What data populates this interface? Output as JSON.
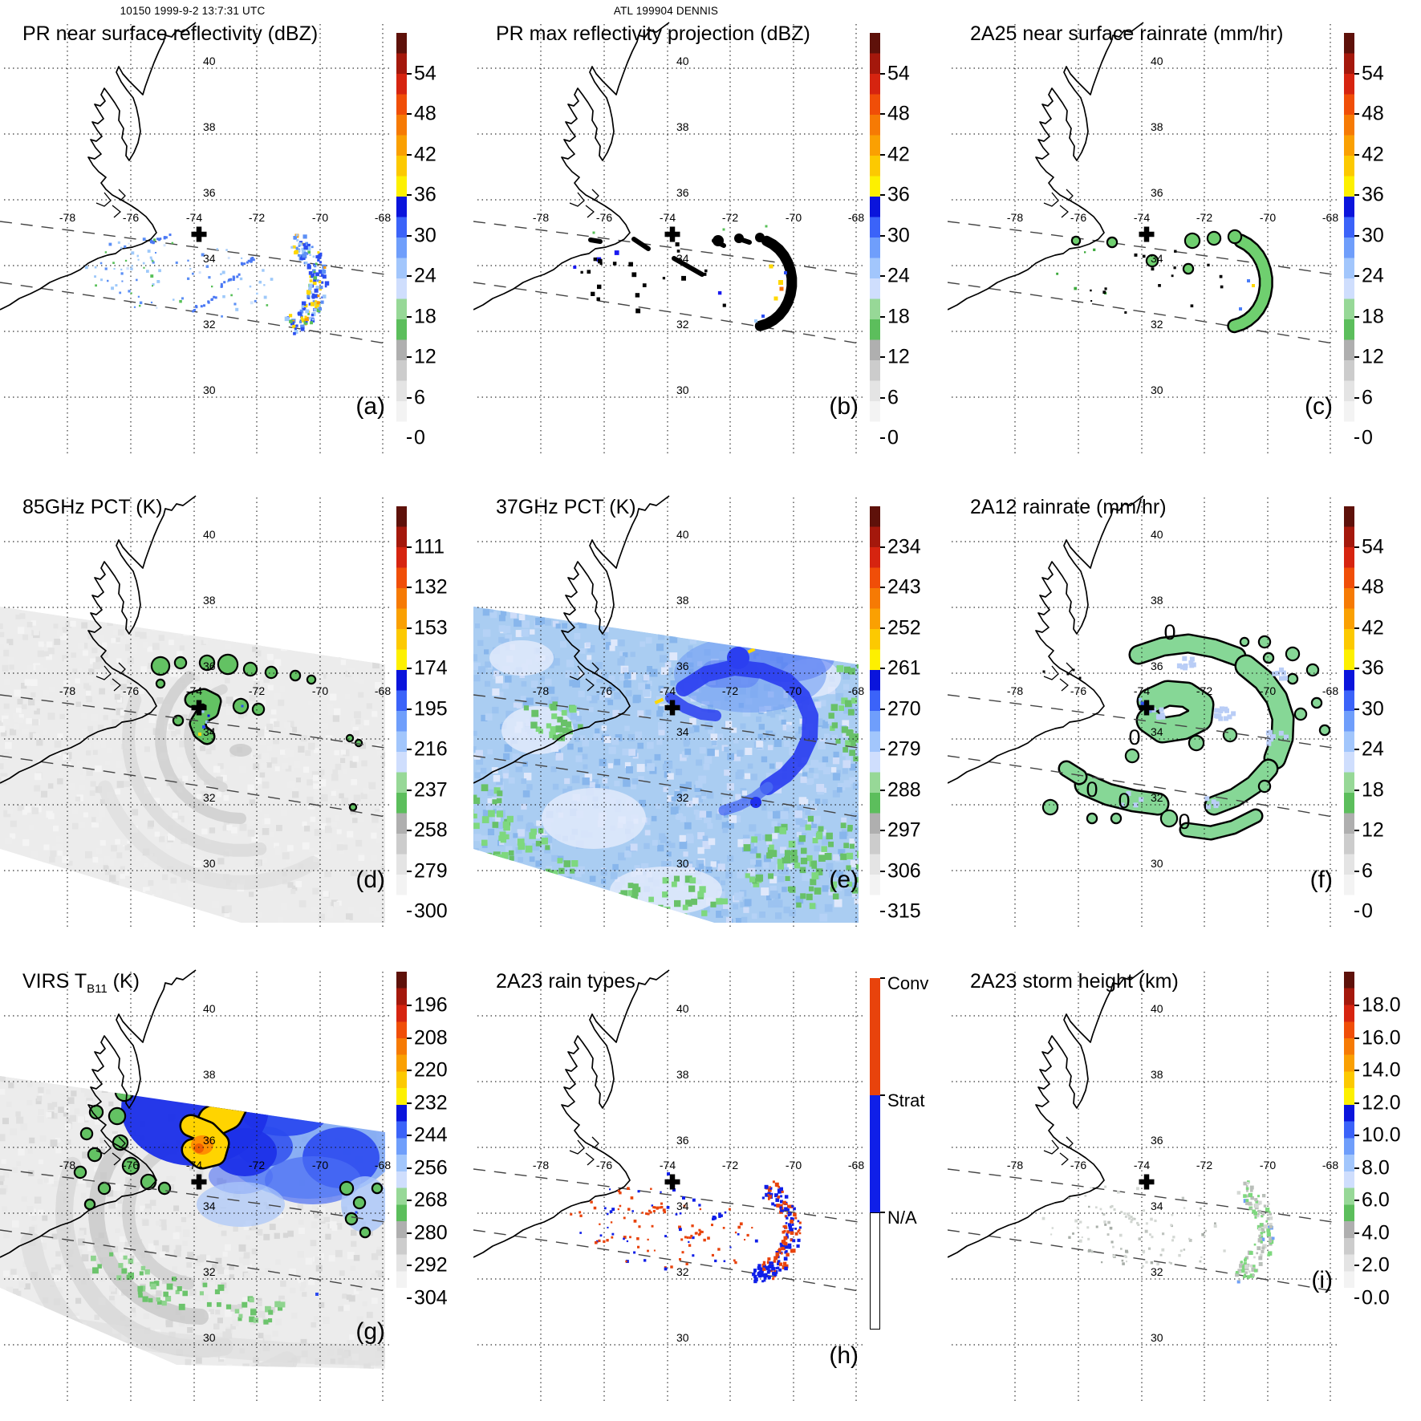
{
  "figure": {
    "headers": {
      "left": "10150 1999-9-2 13:7:31 UTC",
      "center": "ATL 199904 DENNIS"
    },
    "storm_marker": "+"
  },
  "map": {
    "lat_labels": [
      "40",
      "38",
      "36",
      "34",
      "32",
      "30"
    ],
    "lon_labels": [
      "-78",
      "-76",
      "-74",
      "-72",
      "-70",
      "-68"
    ]
  },
  "palette": {
    "scale_bottom_to_top": [
      "#ffffff",
      "#f3f3f3",
      "#e4e4e4",
      "#cccccc",
      "#afafaf",
      "#5cbe5c",
      "#97d897",
      "#cfdefd",
      "#a2c6fc",
      "#6f9efb",
      "#3b63f9",
      "#0a14dc",
      "#fdf000",
      "#fcc901",
      "#faa002",
      "#f67a04",
      "#f04e08",
      "#d62410",
      "#a4180c",
      "#5e110a"
    ],
    "conv": "#e8430c",
    "strat": "#0f1fe8",
    "na": "#ffffff",
    "rain_green": "#6fcf6f",
    "swath_gray": "#ececec",
    "swath_blue": "#aacdf2"
  },
  "panels": [
    {
      "key": "a",
      "letter": "(a)",
      "title": "PR near surface reflectivity (dBZ)",
      "colorbar": {
        "kind": "scale",
        "labels": [
          "54",
          "48",
          "42",
          "36",
          "30",
          "24",
          "18",
          "12",
          "6",
          "0"
        ]
      }
    },
    {
      "key": "b",
      "letter": "(b)",
      "title": "PR max reflectivity projection (dBZ)",
      "colorbar": {
        "kind": "scale",
        "labels": [
          "54",
          "48",
          "42",
          "36",
          "30",
          "24",
          "18",
          "12",
          "6",
          "0"
        ]
      }
    },
    {
      "key": "c",
      "letter": "(c)",
      "title": "2A25 near surface rainrate (mm/hr)",
      "colorbar": {
        "kind": "scale",
        "labels": [
          "54",
          "48",
          "42",
          "36",
          "30",
          "24",
          "18",
          "12",
          "6",
          "0"
        ]
      }
    },
    {
      "key": "d",
      "letter": "(d)",
      "title": "85GHz PCT (K)",
      "colorbar": {
        "kind": "scale",
        "labels": [
          "111",
          "132",
          "153",
          "174",
          "195",
          "216",
          "237",
          "258",
          "279",
          "300"
        ]
      }
    },
    {
      "key": "e",
      "letter": "(e)",
      "title": "37GHz PCT (K)",
      "colorbar": {
        "kind": "scale",
        "labels": [
          "234",
          "243",
          "252",
          "261",
          "270",
          "279",
          "288",
          "297",
          "306",
          "315"
        ]
      }
    },
    {
      "key": "f",
      "letter": "(f)",
      "title": "2A12 rainrate (mm/hr)",
      "contour_labels": [
        "0",
        "0",
        "0",
        "0",
        "0"
      ],
      "colorbar": {
        "kind": "scale",
        "labels": [
          "54",
          "48",
          "42",
          "36",
          "30",
          "24",
          "18",
          "12",
          "6",
          "0"
        ]
      }
    },
    {
      "key": "g",
      "letter": "(g)",
      "title_parts": [
        {
          "t": "VIRS T"
        },
        {
          "sub": "B11"
        },
        {
          "t": " (K)"
        }
      ],
      "colorbar": {
        "kind": "scale",
        "labels": [
          "196",
          "208",
          "220",
          "232",
          "244",
          "256",
          "268",
          "280",
          "292",
          "304"
        ]
      }
    },
    {
      "key": "h",
      "letter": "(h)",
      "title": "2A23 rain types",
      "colorbar": {
        "kind": "categories",
        "labels": [
          "Conv",
          "Strat",
          "N/A"
        ]
      }
    },
    {
      "key": "i",
      "letter": "(i)",
      "title": "2A23 storm height (km)",
      "colorbar": {
        "kind": "scale",
        "labels": [
          "18.0",
          "16.0",
          "14.0",
          "12.0",
          "10.0",
          "8.0",
          "6.0",
          "4.0",
          "2.0",
          "0.0"
        ]
      }
    }
  ],
  "chart_data": [
    {
      "type": "heatmap",
      "panel": "(a)",
      "title": "PR near surface reflectivity (dBZ)",
      "colorbar_ticks": [
        54,
        48,
        42,
        36,
        30,
        24,
        18,
        12,
        6,
        0
      ],
      "extent": {
        "lon": [
          -79,
          -67
        ],
        "lat": [
          29,
          41
        ]
      },
      "content": "scattered 20-40 dBZ echoes inside PR swath, dense curved rainband arc near -70E,33N; storm center marker at -74.2,35.2"
    },
    {
      "type": "heatmap",
      "panel": "(b)",
      "title": "PR max reflectivity projection (dBZ)",
      "colorbar_ticks": [
        54,
        48,
        42,
        36,
        30,
        24,
        18,
        12,
        6,
        0
      ],
      "content": "black high-reflectivity contour blobs along same rainband arc with embedded 36-45 dBZ (yellow/orange) cores"
    },
    {
      "type": "heatmap",
      "panel": "(c)",
      "title": "2A25 near surface rainrate (mm/hr)",
      "colorbar_ticks": [
        54,
        48,
        42,
        36,
        30,
        24,
        18,
        12,
        6,
        0
      ],
      "content": "green 15-21 mm/hr outlined rain cells along rainband arc"
    },
    {
      "type": "heatmap",
      "panel": "(d)",
      "title": "85GHz PCT (K)",
      "colorbar_ticks": [
        111,
        132,
        153,
        174,
        195,
        216,
        237,
        258,
        279,
        300
      ],
      "content": "wide TMI swath ~260-300K (gray); 216-237K depressions (green/blue) in eyewall C-shape near center and northeast arc"
    },
    {
      "type": "heatmap",
      "panel": "(e)",
      "title": "37GHz PCT (K)",
      "colorbar_ticks": [
        234,
        243,
        252,
        261,
        270,
        279,
        288,
        297,
        306,
        315
      ],
      "content": "swath mostly 270-288K (blues), dark 261-270K spiral band around center, 288-297K (green) at swath edges; yellow ~261K pixels near center"
    },
    {
      "type": "heatmap",
      "panel": "(f)",
      "title": "2A12 rainrate (mm/hr)",
      "colorbar_ticks": [
        54,
        48,
        42,
        36,
        30,
        24,
        18,
        12,
        6,
        0
      ],
      "content": "broad green 15-21 mm/hr spiral rain shield with 0-contour labels and embedded 21-30 mm/hr blue patches"
    },
    {
      "type": "heatmap",
      "panel": "(g)",
      "title": "VIRS TB11 (K)",
      "colorbar_ticks": [
        196,
        208,
        220,
        232,
        244,
        256,
        268,
        280,
        292,
        304
      ],
      "content": "cold cloud tops: 208-232K yellow/orange core near center surrounded by 232-256K blue shield and 268K green fringe over 280-300K gray cloud field"
    },
    {
      "type": "heatmap",
      "panel": "(h)",
      "title": "2A23 rain types",
      "categories": [
        "Conv",
        "Strat",
        "N/A"
      ],
      "content": "convective (orange) and stratiform (blue) pixels in PR swath; stratiform dominates rainband arc near -70E"
    },
    {
      "type": "heatmap",
      "panel": "(i)",
      "title": "2A23 storm height (km)",
      "colorbar_ticks": [
        18,
        16,
        14,
        12,
        10,
        8,
        6,
        4,
        2,
        0
      ],
      "content": "storm heights 2-6 km (gray/green speckles) along rainband arc"
    }
  ]
}
